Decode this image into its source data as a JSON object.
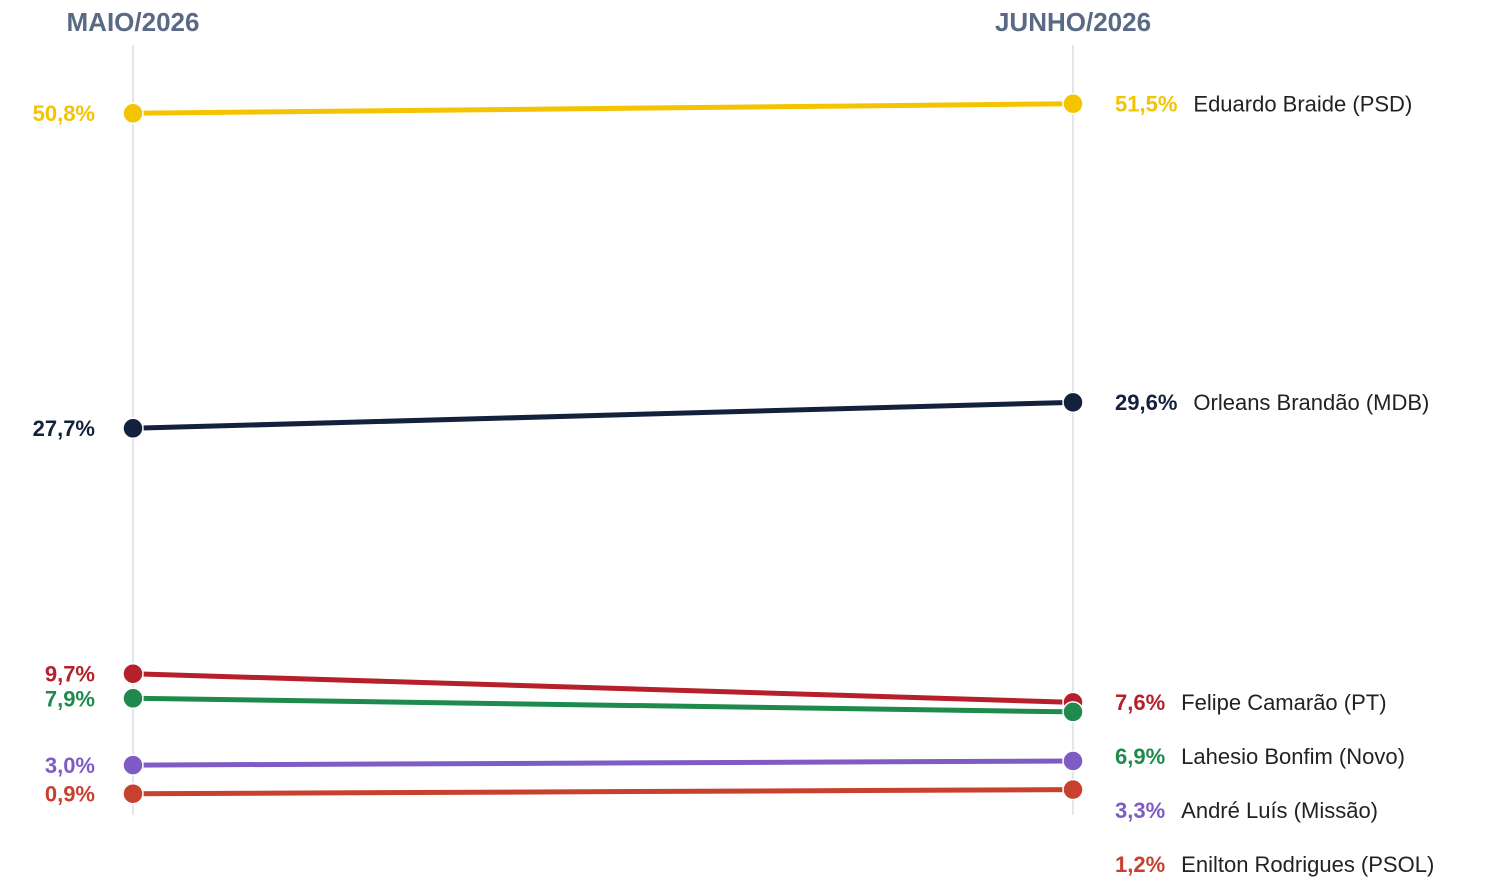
{
  "chart_data": {
    "type": "slope",
    "categories": [
      "MAIO/2026",
      "JUNHO/2026"
    ],
    "ylim": [
      0,
      55
    ],
    "series": [
      {
        "name": "Eduardo Braide (PSD)",
        "color": "#f5c400",
        "values": [
          50.8,
          51.5
        ],
        "value_labels": [
          "50,8%",
          "51,5%"
        ]
      },
      {
        "name": "Orleans Brandão (MDB)",
        "color": "#14213d",
        "values": [
          27.7,
          29.6
        ],
        "value_labels": [
          "27,7%",
          "29,6%"
        ]
      },
      {
        "name": "Felipe Camarão (PT)",
        "color": "#b5202a",
        "values": [
          9.7,
          7.6
        ],
        "value_labels": [
          "9,7%",
          "7,6%"
        ]
      },
      {
        "name": "Lahesio Bonfim (Novo)",
        "color": "#1e8a4c",
        "values": [
          7.9,
          6.9
        ],
        "value_labels": [
          "7,9%",
          "6,9%"
        ]
      },
      {
        "name": "André Luís (Missão)",
        "color": "#7e5cc4",
        "values": [
          3.0,
          3.3
        ],
        "value_labels": [
          "3,0%",
          "3,3%"
        ]
      },
      {
        "name": "Enilton Rodrigues (PSOL)",
        "color": "#c8402e",
        "values": [
          0.9,
          1.2
        ],
        "value_labels": [
          "0,9%",
          "1,2%"
        ]
      }
    ]
  }
}
